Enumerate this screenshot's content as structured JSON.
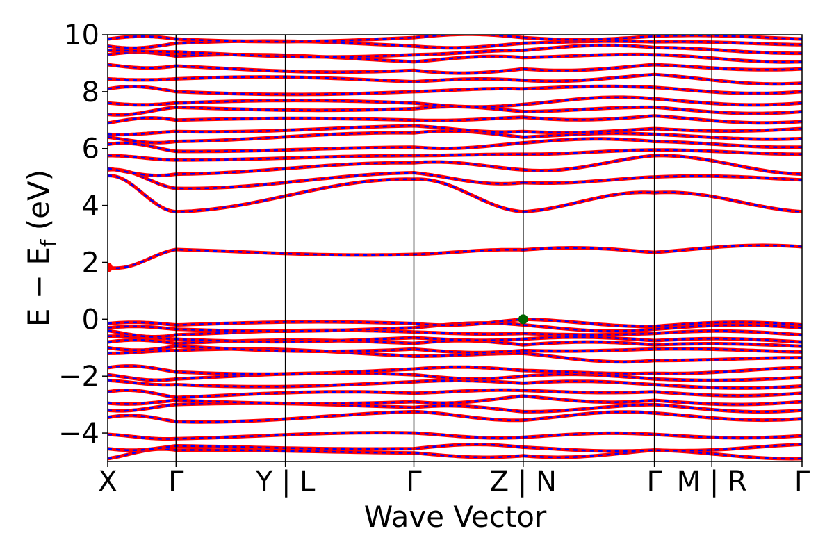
{
  "chart_data": {
    "type": "line",
    "xlabel": "Wave Vector",
    "ylabel_main": "E − E",
    "ylabel_sub": "f",
    "ylabel_unit": " (eV)",
    "ylim": [
      -5,
      10
    ],
    "yticks": [
      -4,
      -2,
      0,
      2,
      4,
      6,
      8,
      10
    ],
    "ytick_labels": [
      "−4",
      "−2",
      "0",
      "2",
      "4",
      "6",
      "8",
      "10"
    ],
    "xlim": [
      0,
      12.7
    ],
    "kpoints": [
      {
        "x": 0.0,
        "label": "X"
      },
      {
        "x": 1.25,
        "label": "Γ"
      },
      {
        "x": 3.25,
        "label": "Y | L"
      },
      {
        "x": 5.6,
        "label": "Γ"
      },
      {
        "x": 7.6,
        "label": "Z | N"
      },
      {
        "x": 10.0,
        "label": "Γ"
      },
      {
        "x": 11.05,
        "label": "M | R"
      },
      {
        "x": 12.7,
        "label": "Γ"
      }
    ],
    "segment_breaks": [
      3.25,
      7.6,
      11.05
    ],
    "colors": {
      "spin_up": "#ff0000",
      "spin_down": "#0000ff",
      "vbm": "#006400",
      "cbm": "#ff0000"
    },
    "vbm": {
      "x": 7.6,
      "y": 0.0
    },
    "cbm": {
      "x": 0.0,
      "y": 1.82
    },
    "band_endpoints": [
      [
        -4.9,
        -4.6,
        -4.7,
        -4.8,
        -4.6,
        -4.9
      ],
      [
        -4.55,
        -4.45,
        -4.55,
        -4.5,
        -4.6,
        -4.4
      ],
      [
        -4.05,
        -4.2,
        -4.0,
        -4.15,
        -4.05,
        -4.1
      ],
      [
        -3.45,
        -3.6,
        -3.25,
        -3.55,
        -3.3,
        -3.5
      ],
      [
        -3.2,
        -3.0,
        -3.1,
        -3.25,
        -3.0,
        -3.2
      ],
      [
        -2.95,
        -2.85,
        -2.9,
        -2.7,
        -2.85,
        -2.9
      ],
      [
        -2.55,
        -2.75,
        -2.6,
        -2.5,
        -2.55,
        -2.6
      ],
      [
        -2.15,
        -2.3,
        -2.2,
        -2.25,
        -2.3,
        -2.35
      ],
      [
        -1.95,
        -2.1,
        -1.95,
        -2.0,
        -2.1,
        -2.05
      ],
      [
        -1.7,
        -1.85,
        -1.75,
        -1.8,
        -1.9,
        -1.7
      ],
      [
        -1.2,
        -1.1,
        -1.3,
        -1.2,
        -1.45,
        -1.35
      ],
      [
        -1.0,
        -0.95,
        -1.05,
        -1.1,
        -1.05,
        -1.15
      ],
      [
        -0.8,
        -0.85,
        -0.85,
        -0.9,
        -0.9,
        -0.95
      ],
      [
        -0.6,
        -0.7,
        -0.65,
        -0.7,
        -0.75,
        -0.8
      ],
      [
        -0.4,
        -0.55,
        -0.45,
        -0.5,
        -0.5,
        -0.55
      ],
      [
        -0.3,
        -0.35,
        -0.3,
        -0.2,
        -0.35,
        -0.3
      ],
      [
        -0.15,
        -0.2,
        -0.15,
        0.0,
        -0.25,
        -0.2
      ],
      [
        1.82,
        2.45,
        2.28,
        2.44,
        2.35,
        2.55
      ],
      [
        5.05,
        3.78,
        4.92,
        3.78,
        4.45,
        3.78
      ],
      [
        5.25,
        4.6,
        5.15,
        4.8,
        5.0,
        4.9
      ],
      [
        5.3,
        5.1,
        5.5,
        5.25,
        5.75,
        5.1
      ],
      [
        5.75,
        5.6,
        5.75,
        5.8,
        5.95,
        5.8
      ],
      [
        6.15,
        5.9,
        6.05,
        6.2,
        6.25,
        6.05
      ],
      [
        6.4,
        6.25,
        6.55,
        6.4,
        6.5,
        6.35
      ],
      [
        6.5,
        6.6,
        6.8,
        6.6,
        6.7,
        6.7
      ],
      [
        6.9,
        7.0,
        7.0,
        7.1,
        7.15,
        6.95
      ],
      [
        7.2,
        7.45,
        7.4,
        7.3,
        7.45,
        7.3
      ],
      [
        7.6,
        7.6,
        7.6,
        7.55,
        7.75,
        7.6
      ],
      [
        8.1,
        8.0,
        8.0,
        8.1,
        8.15,
        8.0
      ],
      [
        8.45,
        8.45,
        8.35,
        8.4,
        8.6,
        8.3
      ],
      [
        8.95,
        8.9,
        8.75,
        8.8,
        8.95,
        8.8
      ],
      [
        9.3,
        9.25,
        9.05,
        9.2,
        9.3,
        9.05
      ],
      [
        9.45,
        9.4,
        9.3,
        9.45,
        9.55,
        9.35
      ],
      [
        9.6,
        9.7,
        9.6,
        9.7,
        9.75,
        9.65
      ],
      [
        9.85,
        9.85,
        9.9,
        9.9,
        9.95,
        9.85
      ]
    ]
  }
}
